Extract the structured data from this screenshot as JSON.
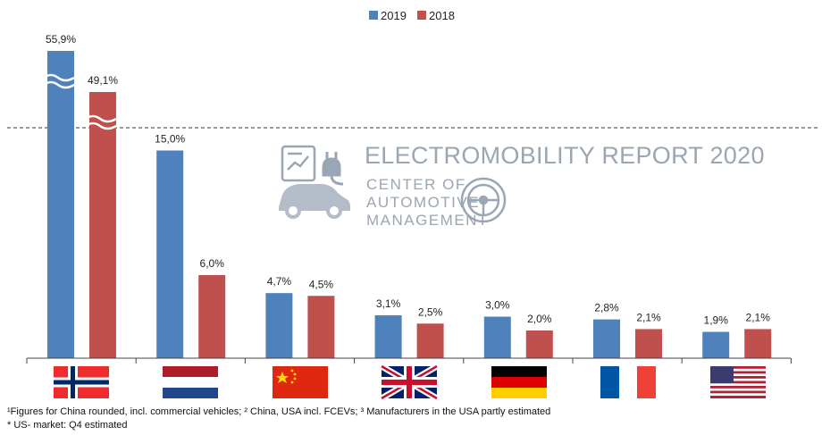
{
  "chart_data": {
    "type": "bar",
    "categories": [
      "Norway",
      "Netherlands",
      "China",
      "United Kingdom",
      "Germany",
      "France",
      "USA"
    ],
    "series": [
      {
        "name": "2019",
        "color": "#4f81bd",
        "values": [
          55.9,
          15.0,
          4.7,
          3.1,
          3.0,
          2.8,
          1.9
        ],
        "labels": [
          "55,9%",
          "15,0%",
          "4,7%",
          "3,1%",
          "3,0%",
          "2,8%",
          "1,9%"
        ]
      },
      {
        "name": "2018",
        "color": "#c0504d",
        "values": [
          49.1,
          6.0,
          4.5,
          2.5,
          2.0,
          2.1,
          2.1
        ],
        "labels": [
          "49,1%",
          "6,0%",
          "4,5%",
          "2,5%",
          "2,0%",
          "2,1%",
          "2,1%"
        ]
      }
    ],
    "axis_break": true,
    "legend_position": "top-center",
    "grid": false
  },
  "watermark": {
    "title": "ELECTROMOBILITY REPORT 2020",
    "org_line1": "CENTER OF",
    "org_line2": "AUTOMOTIVE",
    "org_line3": "MANAGEMENT"
  },
  "footnotes": {
    "line1": "¹Figures for China rounded, incl. commercial vehicles; ² China, USA incl. FCEVs; ³ Manufacturers in the USA partly estimated",
    "line2": "* US- market: Q4 estimated"
  },
  "colors": {
    "series_2019": "#4f81bd",
    "series_2018": "#c0504d",
    "watermark": "#9aa6b4"
  }
}
